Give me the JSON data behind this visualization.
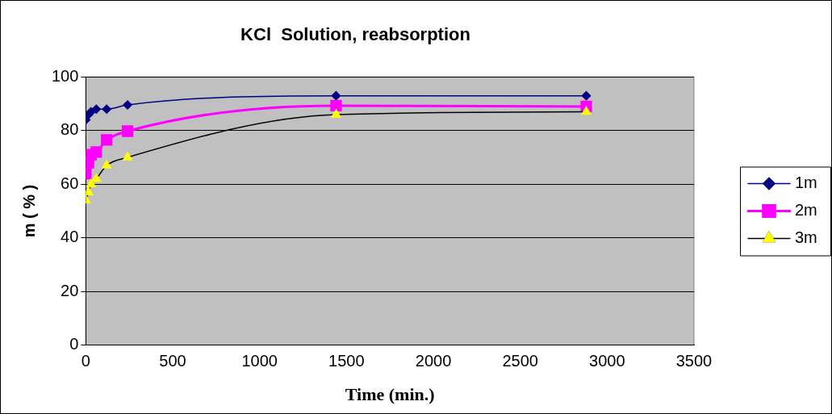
{
  "chart_data": {
    "type": "line",
    "title": "KCl  Solution, reabsorption",
    "xlabel": "Time (min.)",
    "ylabel": "m ( % )",
    "x": [
      0,
      15,
      30,
      60,
      120,
      240,
      1440,
      2880
    ],
    "xlim": [
      0,
      3500
    ],
    "xticks": [
      0,
      500,
      1000,
      1500,
      2000,
      2500,
      3000,
      3500
    ],
    "ylim": [
      0,
      100
    ],
    "yticks": [
      0,
      20,
      40,
      60,
      80,
      100
    ],
    "grid": "y",
    "legend": "right",
    "series": [
      {
        "name": "1m",
        "color": "#000080",
        "marker": "diamond",
        "values": [
          84,
          86,
          87,
          88,
          88,
          89.6,
          93,
          93
        ]
      },
      {
        "name": "2m",
        "color": "#ff00ff",
        "marker": "square",
        "values": [
          64,
          68,
          71,
          72,
          76.5,
          79.8,
          89.3,
          89
        ]
      },
      {
        "name": "3m",
        "color": "#000000",
        "colors": [
          "#ffff00",
          "#ffff00",
          "#ffff00",
          "#ffff00",
          "#ffff00",
          "#ffff00",
          "#ffff00",
          "#ffff00"
        ],
        "marker": "triangle",
        "values": [
          54,
          57,
          60,
          62,
          67,
          70,
          86,
          87
        ]
      }
    ]
  }
}
